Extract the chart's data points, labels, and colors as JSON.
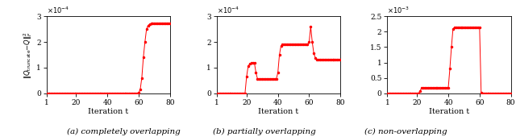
{
  "fig_width": 6.4,
  "fig_height": 1.7,
  "dpi": 100,
  "line_color": "#FF0000",
  "marker": ".",
  "markersize": 3,
  "linewidth": 0.7,
  "xlabel": "Iteration t",
  "xlim": [
    1,
    80
  ],
  "xticks": [
    1,
    20,
    40,
    60,
    80
  ],
  "subplot_labels": [
    "(a) completely overlapping",
    "(b) partially overlapping",
    "(c) non-overlapping"
  ],
  "plots": [
    {
      "ylim": [
        0,
        0.0003
      ],
      "yticks": [
        0,
        0.0001,
        0.0002,
        0.0003
      ],
      "ytick_labels": [
        "0",
        "1",
        "2",
        "3"
      ],
      "exponent_text": "×10-4",
      "exponent": -4
    },
    {
      "ylim": [
        0,
        0.0003
      ],
      "yticks": [
        0,
        0.0001,
        0.0002,
        0.0003
      ],
      "ytick_labels": [
        "0",
        "1",
        "2",
        "3"
      ],
      "exponent_text": "×10-4",
      "exponent": -4
    },
    {
      "ylim": [
        0,
        0.0025
      ],
      "yticks": [
        0,
        0.0005,
        0.001,
        0.0015,
        0.002,
        0.0025
      ],
      "ytick_labels": [
        "0",
        "0.5",
        "1",
        "1.5",
        "2",
        "2.5"
      ],
      "exponent_text": "×10-3",
      "exponent": -3
    }
  ]
}
